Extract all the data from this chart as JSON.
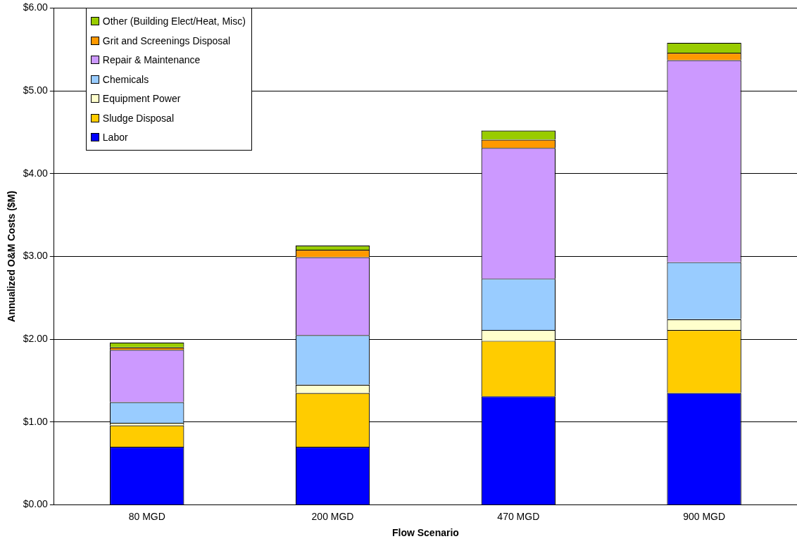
{
  "chart_data": {
    "type": "bar",
    "stacked": true,
    "xlabel": "Flow Scenario",
    "ylabel": "Annualized O&M Costs ($M)",
    "categories": [
      "80 MGD",
      "200 MGD",
      "470 MGD",
      "900 MGD"
    ],
    "series": [
      {
        "name": "Labor",
        "color": "#0000ff",
        "values": [
          0.7,
          0.7,
          1.31,
          1.35
        ]
      },
      {
        "name": "Sludge Disposal",
        "color": "#ffcc00",
        "values": [
          0.26,
          0.65,
          0.67,
          0.76
        ]
      },
      {
        "name": "Equipment Power",
        "color": "#ffffcc",
        "values": [
          0.03,
          0.1,
          0.13,
          0.13
        ]
      },
      {
        "name": "Chemicals",
        "color": "#99ccff",
        "values": [
          0.25,
          0.6,
          0.62,
          0.69
        ]
      },
      {
        "name": "Repair & Maintenance",
        "color": "#cc99ff",
        "values": [
          0.63,
          0.94,
          1.58,
          2.44
        ]
      },
      {
        "name": "Grit and Screenings Disposal",
        "color": "#ff9900",
        "values": [
          0.03,
          0.09,
          0.1,
          0.09
        ]
      },
      {
        "name": "Other (Building Elect/Heat, Misc)",
        "color": "#99cc00",
        "values": [
          0.06,
          0.05,
          0.11,
          0.12
        ]
      }
    ],
    "ylim": [
      0,
      6
    ],
    "yticks": [
      {
        "value": 0,
        "label": "$0.00"
      },
      {
        "value": 1,
        "label": "$1.00"
      },
      {
        "value": 2,
        "label": "$2.00"
      },
      {
        "value": 3,
        "label": "$3.00"
      },
      {
        "value": 4,
        "label": "$4.00"
      },
      {
        "value": 5,
        "label": "$5.00"
      },
      {
        "value": 6,
        "label": "$6.00"
      }
    ],
    "grid": "y",
    "legend": "top left"
  }
}
